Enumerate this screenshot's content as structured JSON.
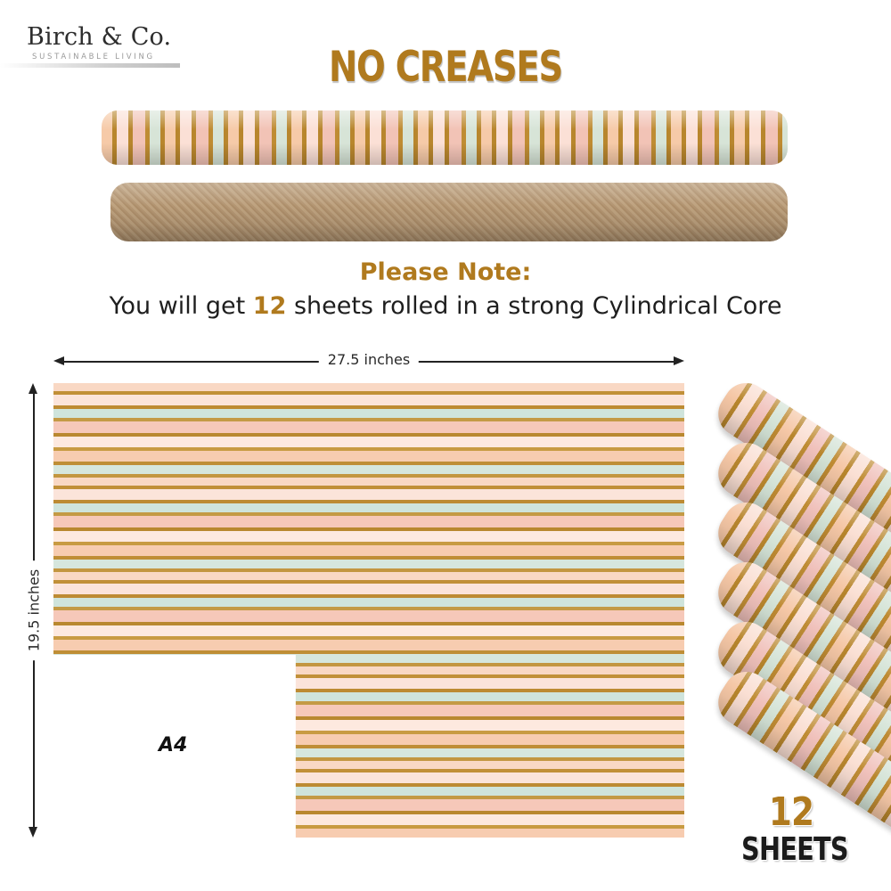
{
  "logo": {
    "brand": "Birch & Co.",
    "tagline": "SUSTAINABLE LIVING"
  },
  "headline": "NO CREASES",
  "note": {
    "title": "Please Note:",
    "body_pre": "You will get ",
    "body_count": "12",
    "body_post": " sheets rolled in a strong Cylindrical Core"
  },
  "dimensions": {
    "width_label": "27.5 inches",
    "height_label": "19.5 inches",
    "comparison_label": "A4"
  },
  "sheet_count": {
    "number": "12",
    "word": "SHEETS"
  },
  "colors": {
    "accent_gold": "#b07a1e",
    "stripe_gold": "#bd8b33",
    "stripe_peach": "#f9d8c4",
    "stripe_pink": "#f6c8b9",
    "stripe_mint": "#cfe4dc",
    "kraft": "#b39572"
  }
}
